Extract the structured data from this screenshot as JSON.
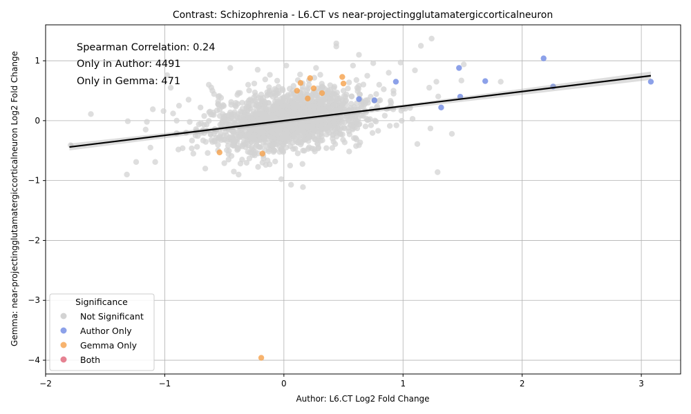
{
  "chart_data": {
    "type": "scatter",
    "title": "Contrast: Schizophrenia - L6.CT vs near-projectingglutamatergiccorticalneuron",
    "xlabel": "Author: L6.CT Log2 Fold Change",
    "ylabel": "Gemma: near-projectingglutamatergiccorticalneuron Log2 Fold Change",
    "xlim": [
      -2.0,
      3.33
    ],
    "ylim": [
      -4.23,
      1.6
    ],
    "xticks": [
      -2,
      -1,
      0,
      1,
      2,
      3
    ],
    "xtick_labels": [
      "−2",
      "−1",
      "0",
      "1",
      "2",
      "3"
    ],
    "yticks": [
      -4,
      -3,
      -2,
      -1,
      0,
      1
    ],
    "ytick_labels": [
      "−4",
      "−3",
      "−2",
      "−1",
      "0",
      "1"
    ],
    "grid": true,
    "annotations": [
      "Spearman Correlation: 0.24",
      "Only in Author: 4491",
      "Only in Gemma: 471"
    ],
    "legend": {
      "title": "Significance",
      "placement": "bottom-left",
      "entries": [
        {
          "label": "Not Significant",
          "color": "#d3d3d3"
        },
        {
          "label": "Author Only",
          "color": "#6f8ae4"
        },
        {
          "label": "Gemma Only",
          "color": "#f5a04a"
        },
        {
          "label": "Both",
          "color": "#e06377"
        }
      ]
    },
    "regression_line": {
      "x": [
        -1.8,
        3.08
      ],
      "y": [
        -0.44,
        0.75
      ],
      "color": "#000000"
    },
    "series": [
      {
        "name": "Not Significant",
        "color": "#d3d3d3",
        "x": [
          -1.79,
          -1.62,
          -1.31,
          -1.24,
          -1.16,
          -1.15,
          -1.12,
          -1.1,
          -1.08,
          -1.01,
          -0.98,
          -0.95,
          -0.93,
          -0.9,
          -0.88,
          -0.85,
          -0.82,
          -0.8,
          -0.76,
          -0.7,
          -0.66,
          -0.63,
          -0.6,
          -0.58,
          -0.55,
          -0.5,
          -0.45,
          -0.42,
          -0.38,
          -0.35,
          -0.3,
          -0.25,
          -0.22,
          -0.18,
          -0.12,
          -0.06,
          0.02,
          0.06,
          0.16,
          0.21,
          0.27,
          0.32,
          0.44,
          0.44,
          0.5,
          0.58,
          0.63,
          0.7,
          0.75,
          0.8,
          0.88,
          0.92,
          0.98,
          1.02,
          1.08,
          1.1,
          1.12,
          1.15,
          1.22,
          1.23,
          1.24,
          1.28,
          1.29,
          1.41,
          1.49,
          1.51,
          1.82,
          -0.9,
          -0.6,
          -0.2,
          0.3,
          0.9,
          1.0
        ],
        "y": [
          -0.41,
          0.11,
          -0.01,
          -0.69,
          -0.15,
          -0.02,
          -0.45,
          0.19,
          -0.69,
          0.16,
          0.76,
          0.55,
          0.12,
          -0.21,
          0.25,
          -0.46,
          -0.2,
          0.35,
          -0.55,
          0.22,
          -0.8,
          0.6,
          0.5,
          -0.35,
          0.4,
          -0.71,
          0.88,
          -0.85,
          -0.9,
          0.3,
          0.6,
          -0.25,
          0.85,
          -0.7,
          0.5,
          -0.4,
          0.92,
          -1.07,
          -1.11,
          0.6,
          0.88,
          0.2,
          1.29,
          1.24,
          0.5,
          0.92,
          1.1,
          0.75,
          0.96,
          0.6,
          0.8,
          0.5,
          0.97,
          0.2,
          0.03,
          0.84,
          -0.39,
          1.25,
          0.55,
          -0.13,
          1.37,
          0.65,
          -0.86,
          -0.22,
          0.67,
          0.94,
          0.65,
          0.0,
          0.1,
          -0.1,
          0.0,
          0.3,
          0.2
        ]
      },
      {
        "name": "Author Only",
        "color": "#6f8ae4",
        "x": [
          0.63,
          0.76,
          0.94,
          1.32,
          1.47,
          1.48,
          1.69,
          2.18,
          2.26,
          3.08
        ],
        "y": [
          0.36,
          0.34,
          0.65,
          0.22,
          0.88,
          0.4,
          0.66,
          1.04,
          0.57,
          0.65
        ]
      },
      {
        "name": "Gemma Only",
        "color": "#f5a04a",
        "x": [
          -0.54,
          -0.18,
          0.11,
          0.14,
          0.2,
          0.22,
          0.25,
          0.32,
          0.49,
          0.5,
          -0.19
        ],
        "y": [
          -0.53,
          -0.55,
          0.5,
          0.63,
          0.37,
          0.71,
          0.54,
          0.46,
          0.73,
          0.62,
          -3.96
        ]
      },
      {
        "name": "Both",
        "color": "#e06377",
        "x": [],
        "y": []
      }
    ]
  }
}
